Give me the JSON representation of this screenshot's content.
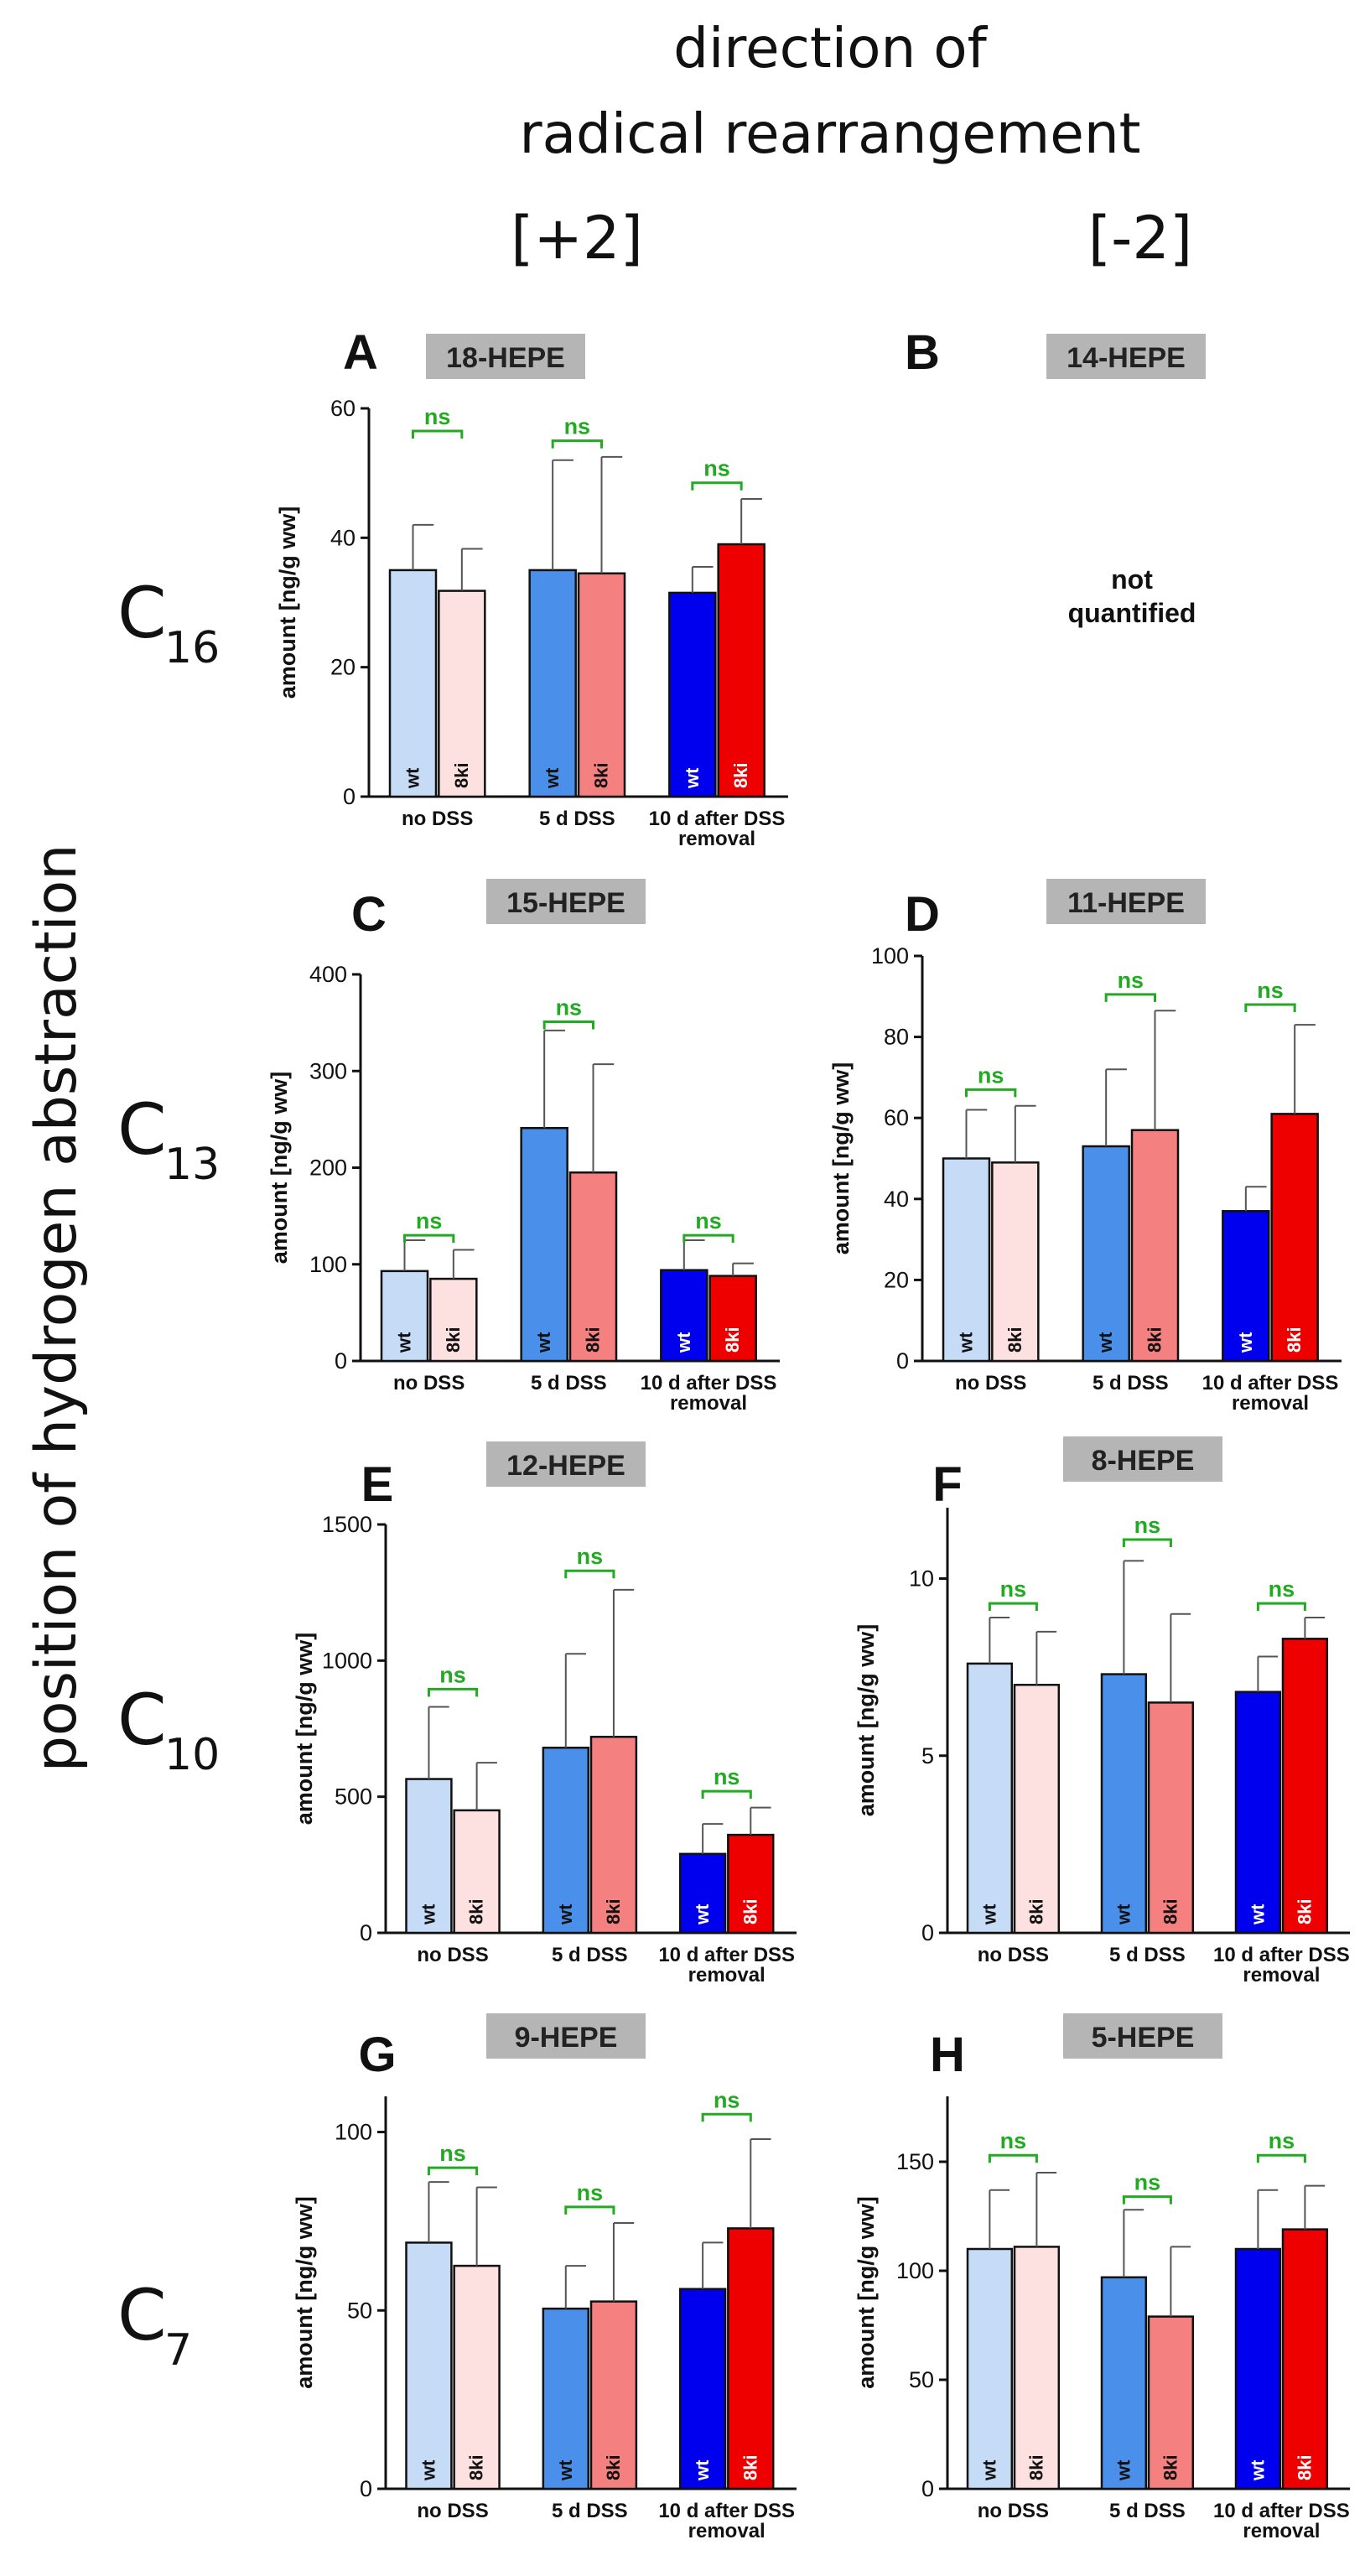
{
  "header": {
    "title_line1": "direction of",
    "title_line2": "radical rearrangement",
    "col_plus": "[+2]",
    "col_minus": "[-2]"
  },
  "side_title": "position of hydrogen abstraction",
  "row_labels": [
    {
      "base": "C",
      "sub": "16"
    },
    {
      "base": "C",
      "sub": "13"
    },
    {
      "base": "C",
      "sub": "10"
    },
    {
      "base": "C",
      "sub": "7"
    }
  ],
  "common": {
    "ylabel": "amount [ng/g ww]",
    "groups": [
      "no DSS",
      "5 d DSS",
      "10 d after DSS"
    ],
    "group3_line2": "removal",
    "bar_labels": [
      "wt",
      "8ki"
    ],
    "sig_label": "ns",
    "colors": {
      "wt_no": "#c5dbf6",
      "ki_no": "#fde0e0",
      "wt_5d": "#4a90ea",
      "ki_5d": "#f58080",
      "wt_10d": "#0000ee",
      "ki_10d": "#ee0000",
      "sig": "#22aa22",
      "titlebox": "#b5b5b5"
    }
  },
  "panel_B_note": {
    "line1": "not",
    "line2": "quantified"
  },
  "chart_data": [
    {
      "id": "A",
      "letter": "A",
      "type": "bar",
      "title": "18-HEPE",
      "ylim": [
        0,
        60
      ],
      "yticks": [
        0,
        20,
        40,
        60
      ],
      "ytick_labels": [
        "0",
        "20",
        "40",
        "60"
      ],
      "series": [
        {
          "name": "wt",
          "values": [
            35,
            35,
            31.5
          ]
        },
        {
          "name": "8ki",
          "values": [
            31.8,
            34.5,
            39
          ]
        }
      ],
      "errors": [
        {
          "name": "wt",
          "values": [
            7,
            17,
            4
          ]
        },
        {
          "name": "8ki",
          "values": [
            6.5,
            18,
            7
          ]
        }
      ],
      "sig": [
        {
          "group": 0,
          "label": "ns",
          "y": 56.5
        },
        {
          "group": 1,
          "label": "ns",
          "y": 55
        },
        {
          "group": 2,
          "label": "ns",
          "y": 48.5
        }
      ]
    },
    {
      "id": "B",
      "letter": "B",
      "type": "bar",
      "title": "14-HEPE",
      "quantified": false
    },
    {
      "id": "C",
      "letter": "C",
      "type": "bar",
      "title": "15-HEPE",
      "ylim": [
        0,
        400
      ],
      "yticks": [
        0,
        100,
        200,
        300,
        400
      ],
      "ytick_labels": [
        "0",
        "100",
        "200",
        "300",
        "400"
      ],
      "series": [
        {
          "name": "wt",
          "values": [
            93,
            241,
            94
          ]
        },
        {
          "name": "8ki",
          "values": [
            85,
            195,
            88
          ]
        }
      ],
      "errors": [
        {
          "name": "wt",
          "values": [
            32,
            101,
            31
          ]
        },
        {
          "name": "8ki",
          "values": [
            30,
            112,
            13
          ]
        }
      ],
      "sig": [
        {
          "group": 0,
          "label": "ns",
          "y": 130
        },
        {
          "group": 1,
          "label": "ns",
          "y": 351
        },
        {
          "group": 2,
          "label": "ns",
          "y": 130
        }
      ]
    },
    {
      "id": "D",
      "letter": "D",
      "type": "bar",
      "title": "11-HEPE",
      "ylim": [
        0,
        100
      ],
      "yticks": [
        0,
        20,
        40,
        60,
        80,
        100
      ],
      "ytick_labels": [
        "0",
        "20",
        "40",
        "60",
        "80",
        "100"
      ],
      "series": [
        {
          "name": "wt",
          "values": [
            50,
            53,
            37
          ]
        },
        {
          "name": "8ki",
          "values": [
            49,
            57,
            61
          ]
        }
      ],
      "errors": [
        {
          "name": "wt",
          "values": [
            12,
            19,
            6
          ]
        },
        {
          "name": "8ki",
          "values": [
            14,
            29.5,
            22
          ]
        }
      ],
      "sig": [
        {
          "group": 0,
          "label": "ns",
          "y": 67
        },
        {
          "group": 1,
          "label": "ns",
          "y": 90.5
        },
        {
          "group": 2,
          "label": "ns",
          "y": 88
        }
      ]
    },
    {
      "id": "E",
      "letter": "E",
      "type": "bar",
      "title": "12-HEPE",
      "ylim": [
        0,
        1500
      ],
      "yticks": [
        0,
        500,
        1000,
        1500
      ],
      "ytick_labels": [
        "0",
        "500",
        "1000",
        "1500"
      ],
      "series": [
        {
          "name": "wt",
          "values": [
            565,
            680,
            290
          ]
        },
        {
          "name": "8ki",
          "values": [
            450,
            720,
            360
          ]
        }
      ],
      "errors": [
        {
          "name": "wt",
          "values": [
            265,
            345,
            110
          ]
        },
        {
          "name": "8ki",
          "values": [
            175,
            540,
            100
          ]
        }
      ],
      "sig": [
        {
          "group": 0,
          "label": "ns",
          "y": 895
        },
        {
          "group": 1,
          "label": "ns",
          "y": 1330
        },
        {
          "group": 2,
          "label": "ns",
          "y": 520
        }
      ]
    },
    {
      "id": "F",
      "letter": "F",
      "type": "bar",
      "title": "8-HEPE",
      "ylim": [
        0,
        12
      ],
      "yticks": [
        0,
        5,
        10
      ],
      "ytick_labels": [
        "0",
        "5",
        "10"
      ],
      "series": [
        {
          "name": "wt",
          "values": [
            7.6,
            7.3,
            6.8
          ]
        },
        {
          "name": "8ki",
          "values": [
            7.0,
            6.5,
            8.3
          ]
        }
      ],
      "errors": [
        {
          "name": "wt",
          "values": [
            1.3,
            3.2,
            1.0
          ]
        },
        {
          "name": "8ki",
          "values": [
            1.5,
            2.5,
            0.6
          ]
        }
      ],
      "sig": [
        {
          "group": 0,
          "label": "ns",
          "y": 9.3
        },
        {
          "group": 1,
          "label": "ns",
          "y": 11.1
        },
        {
          "group": 2,
          "label": "ns",
          "y": 9.3
        }
      ]
    },
    {
      "id": "G",
      "letter": "G",
      "type": "bar",
      "title": "9-HEPE",
      "ylim": [
        0,
        110
      ],
      "yticks": [
        0,
        50,
        100
      ],
      "ytick_labels": [
        "0",
        "50",
        "100"
      ],
      "series": [
        {
          "name": "wt",
          "values": [
            69,
            50.5,
            56
          ]
        },
        {
          "name": "8ki",
          "values": [
            62.5,
            52.5,
            73
          ]
        }
      ],
      "errors": [
        {
          "name": "wt",
          "values": [
            17,
            12,
            13
          ]
        },
        {
          "name": "8ki",
          "values": [
            22,
            22,
            25
          ]
        }
      ],
      "sig": [
        {
          "group": 0,
          "label": "ns",
          "y": 90
        },
        {
          "group": 1,
          "label": "ns",
          "y": 79
        },
        {
          "group": 2,
          "label": "ns",
          "y": 105
        }
      ]
    },
    {
      "id": "H",
      "letter": "H",
      "type": "bar",
      "title": "5-HEPE",
      "ylim": [
        0,
        180
      ],
      "yticks": [
        0,
        50,
        100,
        150
      ],
      "ytick_labels": [
        "0",
        "50",
        "100",
        "150"
      ],
      "series": [
        {
          "name": "wt",
          "values": [
            110,
            97,
            110
          ]
        },
        {
          "name": "8ki",
          "values": [
            111,
            79,
            119
          ]
        }
      ],
      "errors": [
        {
          "name": "wt",
          "values": [
            27,
            31,
            27
          ]
        },
        {
          "name": "8ki",
          "values": [
            34,
            32,
            20
          ]
        }
      ],
      "sig": [
        {
          "group": 0,
          "label": "ns",
          "y": 153
        },
        {
          "group": 1,
          "label": "ns",
          "y": 134
        },
        {
          "group": 2,
          "label": "ns",
          "y": 153
        }
      ]
    }
  ]
}
